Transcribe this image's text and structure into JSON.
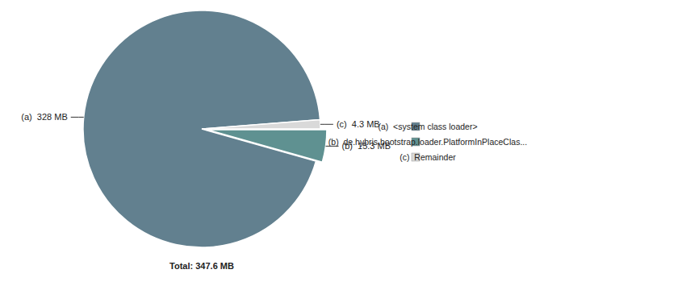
{
  "chart_data": {
    "type": "pie",
    "title": "Total: 347.6 MB",
    "categories": [
      "(a)  <system class loader>",
      "(b)  de.hybris.bootstrap.loader.PlatformInPlaceClas...",
      "(c)  Remainder"
    ],
    "values": [
      328,
      15.3,
      4.3
    ],
    "value_labels": [
      "(a)  328 MB",
      "(b)  15.3 MB",
      "(c)  4.3 MB"
    ],
    "colors": [
      "#62808f",
      "#5f9191",
      "#d9d9d9"
    ],
    "data_labels": true,
    "legend": "right"
  }
}
